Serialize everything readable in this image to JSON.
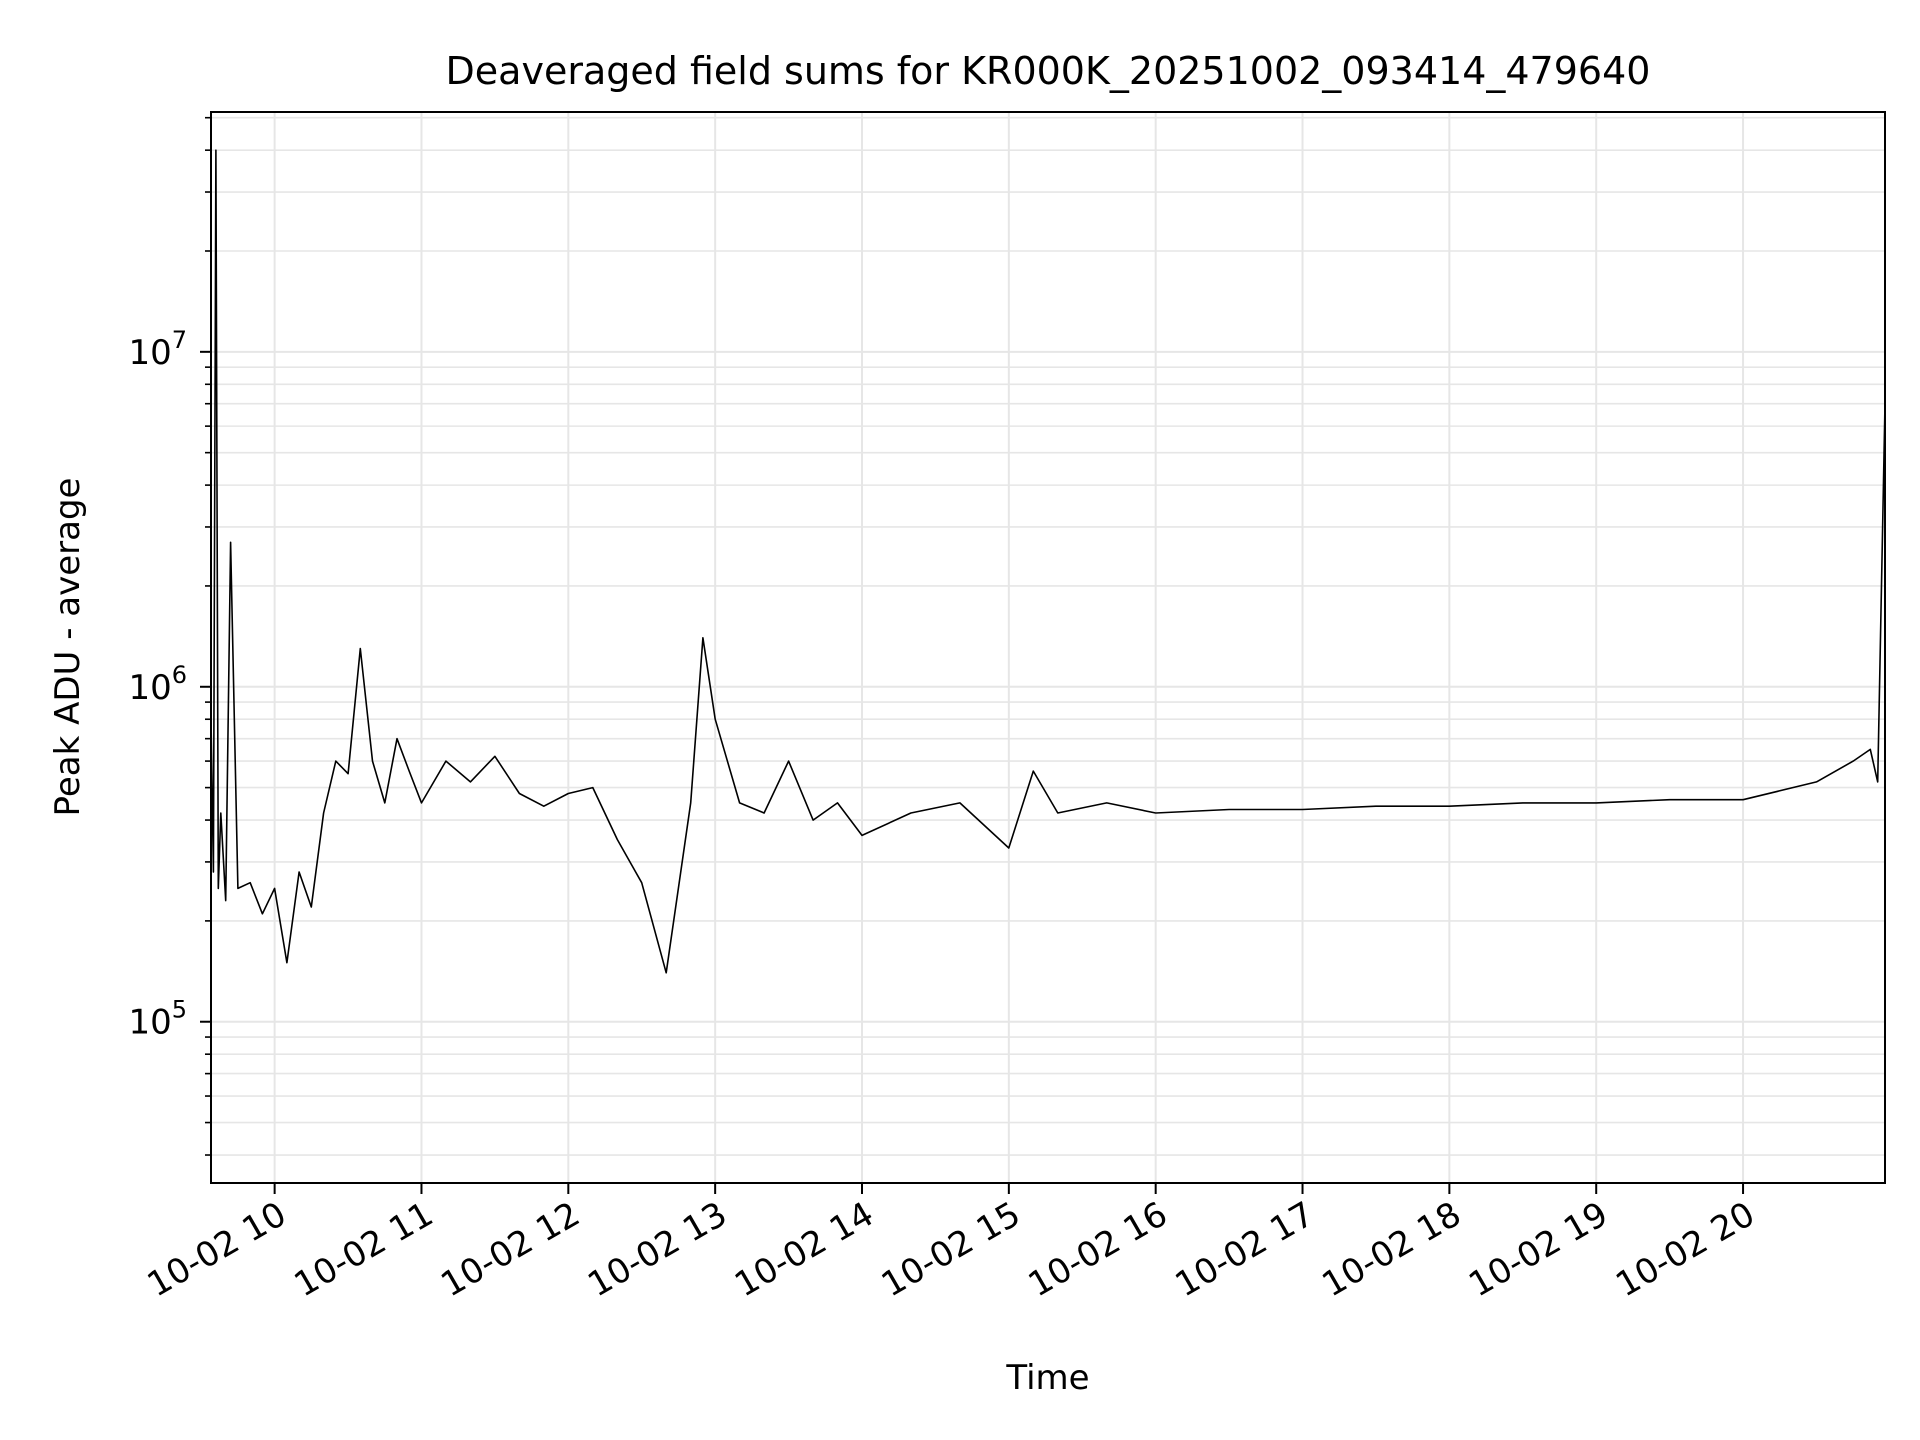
{
  "chart_data": {
    "type": "line",
    "title": "Deaveraged field sums for KR000K_20251002_093414_479640",
    "xlabel": "Time",
    "ylabel": "Peak ADU - average",
    "y_scale": "log",
    "grid": true,
    "grid_minor": true,
    "legend": "none",
    "line_color": "#000000",
    "grid_color": "#e6e6e6",
    "xlim": [
      "2025-10-02 09:34",
      "2025-10-02 20:58"
    ],
    "ylim": [
      33000,
      52000000
    ],
    "x_ticks": [
      {
        "value": "2025-10-02 10:00",
        "label": "10-02 10"
      },
      {
        "value": "2025-10-02 11:00",
        "label": "10-02 11"
      },
      {
        "value": "2025-10-02 12:00",
        "label": "10-02 12"
      },
      {
        "value": "2025-10-02 13:00",
        "label": "10-02 13"
      },
      {
        "value": "2025-10-02 14:00",
        "label": "10-02 14"
      },
      {
        "value": "2025-10-02 15:00",
        "label": "10-02 15"
      },
      {
        "value": "2025-10-02 16:00",
        "label": "10-02 16"
      },
      {
        "value": "2025-10-02 17:00",
        "label": "10-02 17"
      },
      {
        "value": "2025-10-02 18:00",
        "label": "10-02 18"
      },
      {
        "value": "2025-10-02 19:00",
        "label": "10-02 19"
      },
      {
        "value": "2025-10-02 20:00",
        "label": "10-02 20"
      }
    ],
    "y_ticks": [
      {
        "value": 100000,
        "base": "10",
        "exp": "5"
      },
      {
        "value": 1000000,
        "base": "10",
        "exp": "6"
      },
      {
        "value": 10000000,
        "base": "10",
        "exp": "7"
      }
    ],
    "series": [
      {
        "x": [
          "2025-10-02 09:34",
          "2025-10-02 09:35",
          "2025-10-02 09:36",
          "2025-10-02 09:37",
          "2025-10-02 09:38",
          "2025-10-02 09:40",
          "2025-10-02 09:42",
          "2025-10-02 09:45",
          "2025-10-02 09:50",
          "2025-10-02 09:55",
          "2025-10-02 10:00",
          "2025-10-02 10:05",
          "2025-10-02 10:10",
          "2025-10-02 10:15",
          "2025-10-02 10:20",
          "2025-10-02 10:25",
          "2025-10-02 10:30",
          "2025-10-02 10:35",
          "2025-10-02 10:40",
          "2025-10-02 10:45",
          "2025-10-02 10:50",
          "2025-10-02 10:55",
          "2025-10-02 11:00",
          "2025-10-02 11:10",
          "2025-10-02 11:20",
          "2025-10-02 11:30",
          "2025-10-02 11:40",
          "2025-10-02 11:50",
          "2025-10-02 12:00",
          "2025-10-02 12:10",
          "2025-10-02 12:20",
          "2025-10-02 12:30",
          "2025-10-02 12:40",
          "2025-10-02 12:50",
          "2025-10-02 12:55",
          "2025-10-02 13:00",
          "2025-10-02 13:10",
          "2025-10-02 13:20",
          "2025-10-02 13:30",
          "2025-10-02 13:40",
          "2025-10-02 13:50",
          "2025-10-02 14:00",
          "2025-10-02 14:20",
          "2025-10-02 14:40",
          "2025-10-02 15:00",
          "2025-10-02 15:10",
          "2025-10-02 15:20",
          "2025-10-02 15:40",
          "2025-10-02 16:00",
          "2025-10-02 16:30",
          "2025-10-02 17:00",
          "2025-10-02 17:30",
          "2025-10-02 18:00",
          "2025-10-02 18:30",
          "2025-10-02 19:00",
          "2025-10-02 19:30",
          "2025-10-02 20:00",
          "2025-10-02 20:30",
          "2025-10-02 20:45",
          "2025-10-02 20:52",
          "2025-10-02 20:55",
          "2025-10-02 20:58"
        ],
        "y": [
          800000,
          280000,
          40000000,
          250000,
          420000,
          230000,
          2700000,
          250000,
          260000,
          210000,
          250000,
          150000,
          280000,
          220000,
          420000,
          600000,
          550000,
          1300000,
          600000,
          450000,
          700000,
          560000,
          450000,
          600000,
          520000,
          620000,
          480000,
          440000,
          480000,
          500000,
          350000,
          260000,
          140000,
          450000,
          1400000,
          800000,
          450000,
          420000,
          600000,
          400000,
          450000,
          360000,
          420000,
          450000,
          330000,
          560000,
          420000,
          450000,
          420000,
          430000,
          430000,
          440000,
          440000,
          450000,
          450000,
          460000,
          460000,
          520000,
          600000,
          650000,
          520000,
          7000000
        ]
      }
    ]
  }
}
